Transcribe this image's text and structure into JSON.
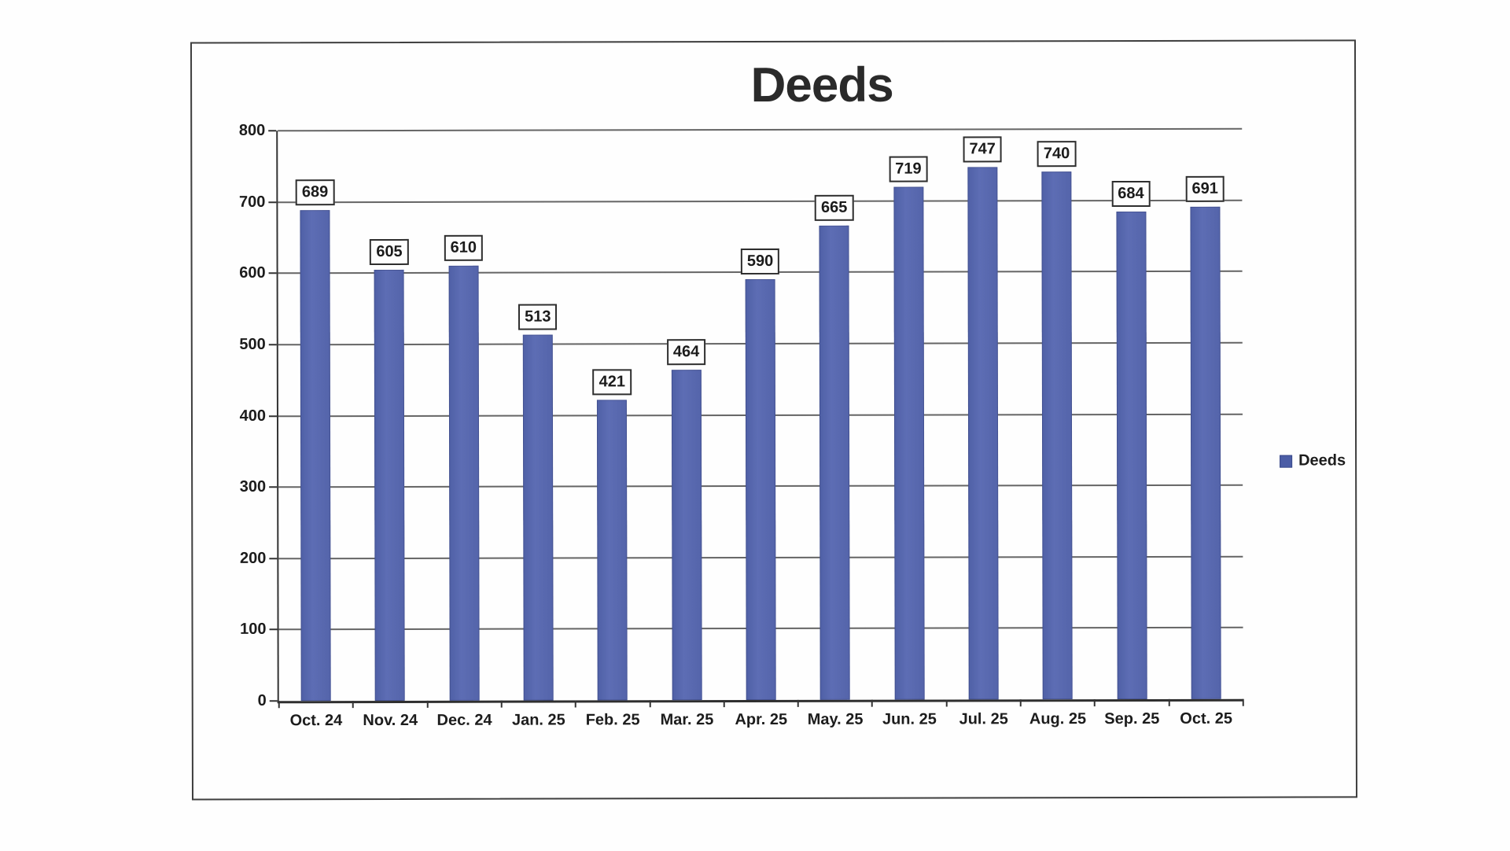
{
  "title": "Deeds",
  "legend": {
    "label": "Deeds"
  },
  "colors": {
    "bar": "#5565ab",
    "gridline": "#4a4a4a",
    "axis": "#2f2f2f",
    "text": "#1c1c1c"
  },
  "chart_data": {
    "type": "bar",
    "title": "Deeds",
    "series_name": "Deeds",
    "categories": [
      "Oct. 24",
      "Nov. 24",
      "Dec. 24",
      "Jan. 25",
      "Feb. 25",
      "Mar. 25",
      "Apr. 25",
      "May. 25",
      "Jun. 25",
      "Jul. 25",
      "Aug. 25",
      "Sep. 25",
      "Oct. 25"
    ],
    "values": [
      689,
      605,
      610,
      513,
      421,
      464,
      590,
      665,
      719,
      747,
      740,
      684,
      691
    ],
    "xlabel": "",
    "ylabel": "",
    "ylim": [
      0,
      800
    ],
    "ytick_interval": 100,
    "grid": true,
    "data_labels": true,
    "legend_position": "right"
  }
}
